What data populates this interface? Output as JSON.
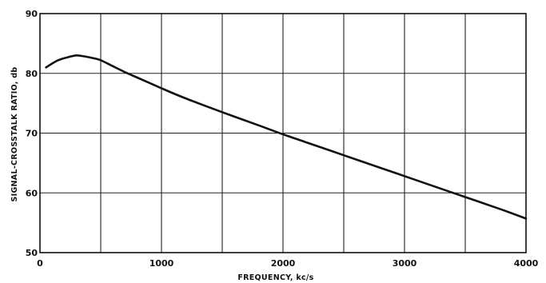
{
  "chart_data": {
    "type": "line",
    "title": "",
    "xlabel": "FREQUENCY, kc/s",
    "ylabel": "SIGNAL-CROSSTALK  RATIO, db",
    "xlim": [
      0,
      4000
    ],
    "ylim": [
      50,
      90
    ],
    "x_ticks": [
      0,
      500,
      1000,
      1500,
      2000,
      2500,
      3000,
      3500,
      4000
    ],
    "x_tick_labels": [
      "0",
      "",
      "1000",
      "",
      "2000",
      "",
      "3000",
      "",
      "4000"
    ],
    "y_ticks": [
      50,
      60,
      70,
      80,
      90
    ],
    "y_tick_labels": [
      "50",
      "60",
      "70",
      "80",
      "90"
    ],
    "grid": true,
    "series": [
      {
        "x": [
          50,
          150,
          250,
          300,
          350,
          450,
          500,
          600,
          700,
          800,
          900,
          1000,
          1200,
          1500,
          1800,
          2000,
          2200,
          2500,
          2800,
          3000,
          3200,
          3500,
          3800,
          4000
        ],
        "y": [
          81.0,
          82.2,
          82.8,
          83.0,
          82.9,
          82.5,
          82.2,
          81.2,
          80.2,
          79.3,
          78.4,
          77.5,
          75.8,
          73.5,
          71.3,
          69.8,
          68.4,
          66.3,
          64.2,
          62.8,
          61.4,
          59.3,
          57.2,
          55.7
        ]
      }
    ]
  }
}
